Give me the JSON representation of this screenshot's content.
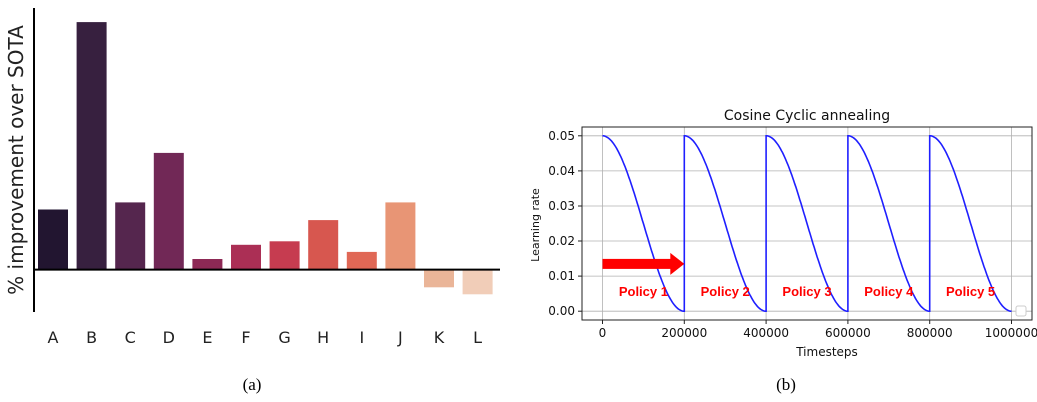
{
  "chart_data": [
    {
      "type": "bar",
      "title": "",
      "xlabel": "",
      "ylabel": "% improvement over SOTA",
      "categories": [
        "A",
        "B",
        "C",
        "D",
        "E",
        "F",
        "G",
        "H",
        "I",
        "J",
        "K",
        "L"
      ],
      "values": [
        17,
        70,
        19,
        33,
        3,
        7,
        8,
        14,
        5,
        19,
        -5,
        -7
      ],
      "colors": [
        "#221530",
        "#37203f",
        "#55264e",
        "#712856",
        "#8d2955",
        "#ab2f55",
        "#c63c50",
        "#d7574f",
        "#e06856",
        "#e89575",
        "#eab598",
        "#f1cdb8"
      ],
      "ylim": [
        -12,
        74
      ],
      "grid": false,
      "caption": "(a)"
    },
    {
      "type": "line",
      "title": "Cosine Cyclic annealing",
      "xlabel": "Timesteps",
      "ylabel": "Learning rate",
      "xlim": [
        -50000,
        1050000
      ],
      "ylim": [
        -0.0025,
        0.0525
      ],
      "x_ticks": [
        0,
        200000,
        400000,
        600000,
        800000,
        1000000
      ],
      "y_ticks": [
        0.0,
        0.01,
        0.02,
        0.03,
        0.04,
        0.05
      ],
      "x_tick_labels": [
        "0",
        "200000",
        "400000",
        "600000",
        "800000",
        "1000000"
      ],
      "y_tick_labels": [
        "0.00",
        "0.01",
        "0.02",
        "0.03",
        "0.04",
        "0.05"
      ],
      "grid": true,
      "series": [
        {
          "color": "#1f1fff",
          "cycle_length": 200000,
          "lr_max": 0.05,
          "lr_min": 0.0,
          "cycle_starts": [
            0,
            200000,
            400000,
            600000,
            800000
          ]
        }
      ],
      "annotations": [
        {
          "text": "Policy 1",
          "x": 100000,
          "y": 0.0055,
          "color": "#ff0000"
        },
        {
          "text": "Policy 2",
          "x": 300000,
          "y": 0.0055,
          "color": "#ff0000"
        },
        {
          "text": "Policy 3",
          "x": 500000,
          "y": 0.0055,
          "color": "#ff0000"
        },
        {
          "text": "Policy 4",
          "x": 700000,
          "y": 0.0055,
          "color": "#ff0000"
        },
        {
          "text": "Policy 5",
          "x": 900000,
          "y": 0.0055,
          "color": "#ff0000"
        }
      ],
      "arrow": {
        "x_start": 0,
        "x_end": 200000,
        "y": 0.0135,
        "color": "#ff0000"
      },
      "caption": "(b)"
    }
  ]
}
